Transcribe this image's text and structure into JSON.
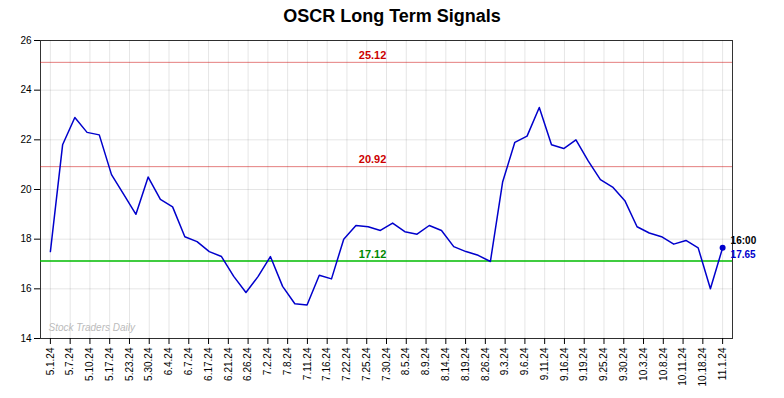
{
  "chart_data": {
    "type": "line",
    "title": "OSCR Long Term Signals",
    "x": [
      0,
      0.618182,
      1.236364,
      1.854545,
      2.472727,
      3.090909,
      3.709091,
      4.327273,
      4.945455,
      5.563636,
      6.181818,
      6.8,
      7.418182,
      8.036364,
      8.654545,
      9.272727,
      9.890909,
      10.509091,
      11.127273,
      11.745455,
      12.363636,
      12.981818,
      13.6,
      14.218182,
      14.836364,
      15.454545,
      16.072727,
      16.690909,
      17.309091,
      17.927273,
      18.545455,
      19.163636,
      19.781818,
      20.4,
      21.018182,
      21.636364,
      22.254545,
      22.872727,
      23.490909,
      24.109091,
      24.727273,
      25.345455,
      25.963636,
      26.581818,
      27.2,
      27.818182,
      28.436364,
      29.054545,
      29.672727,
      30.290909,
      30.909091,
      31.527273,
      32.145455,
      32.763636,
      33.381818,
      34
    ],
    "values": [
      17.5,
      21.8,
      22.9,
      22.3,
      22.2,
      20.6,
      19.8,
      19.0,
      20.5,
      19.6,
      19.3,
      18.1,
      17.9,
      17.5,
      17.3,
      16.5,
      15.85,
      16.5,
      17.3,
      16.1,
      15.4,
      15.35,
      16.55,
      16.4,
      18.0,
      18.55,
      18.5,
      18.35,
      18.65,
      18.3,
      18.2,
      18.55,
      18.35,
      17.7,
      17.5,
      17.35,
      17.1,
      20.3,
      21.9,
      22.15,
      23.3,
      21.8,
      21.65,
      22.0,
      21.15,
      20.4,
      20.1,
      19.55,
      18.5,
      18.25,
      18.1,
      17.8,
      17.95,
      17.65,
      16.0,
      17.65
    ],
    "color": "#0000cc",
    "xlim": [
      -0.5,
      34.5
    ],
    "xticks": [
      {
        "value": 0,
        "label": "5.1.24"
      },
      {
        "value": 1,
        "label": "5.7.24"
      },
      {
        "value": 2,
        "label": "5.10.24"
      },
      {
        "value": 3,
        "label": "5.17.24"
      },
      {
        "value": 4,
        "label": "5.23.24"
      },
      {
        "value": 5,
        "label": "5.30.24"
      },
      {
        "value": 6,
        "label": "6.4.24"
      },
      {
        "value": 7,
        "label": "6.7.24"
      },
      {
        "value": 8,
        "label": "6.17.24"
      },
      {
        "value": 9,
        "label": "6.21.24"
      },
      {
        "value": 10,
        "label": "6.26.24"
      },
      {
        "value": 11,
        "label": "7.2.24"
      },
      {
        "value": 12,
        "label": "7.8.24"
      },
      {
        "value": 13,
        "label": "7.11.24"
      },
      {
        "value": 14,
        "label": "7.16.24"
      },
      {
        "value": 15,
        "label": "7.22.24"
      },
      {
        "value": 16,
        "label": "7.25.24"
      },
      {
        "value": 17,
        "label": "7.30.24"
      },
      {
        "value": 18,
        "label": "8.5.24"
      },
      {
        "value": 19,
        "label": "8.9.24"
      },
      {
        "value": 20,
        "label": "8.14.24"
      },
      {
        "value": 21,
        "label": "8.19.24"
      },
      {
        "value": 22,
        "label": "8.26.24"
      },
      {
        "value": 23,
        "label": "9.3.24"
      },
      {
        "value": 24,
        "label": "9.6.24"
      },
      {
        "value": 25,
        "label": "9.11.24"
      },
      {
        "value": 26,
        "label": "9.16.24"
      },
      {
        "value": 27,
        "label": "9.19.24"
      },
      {
        "value": 28,
        "label": "9.25.24"
      },
      {
        "value": 29,
        "label": "9.30.24"
      },
      {
        "value": 30,
        "label": "10.3.24"
      },
      {
        "value": 31,
        "label": "10.8.24"
      },
      {
        "value": 32,
        "label": "10.11.24"
      },
      {
        "value": 33,
        "label": "10.18.24"
      },
      {
        "value": 34,
        "label": "11.1.24"
      }
    ],
    "ylim": [
      14,
      26
    ],
    "yticks": [
      14,
      16,
      18,
      20,
      22,
      24,
      26
    ],
    "grid": true,
    "hlines": [
      {
        "value": 25.12,
        "label": "25.12",
        "color": "#cc0000"
      },
      {
        "value": 20.92,
        "label": "20.92",
        "color": "#cc0000"
      },
      {
        "value": 17.12,
        "label": "17.12",
        "color": "#00bb00",
        "label_color": "#008800"
      }
    ],
    "annotations": [
      {
        "text": "Stock Traders Daily",
        "color": "#bbbbbb"
      },
      {
        "text": "16:00",
        "color": "#000000"
      },
      {
        "text": "17.65",
        "color": "#0000cc"
      }
    ]
  }
}
